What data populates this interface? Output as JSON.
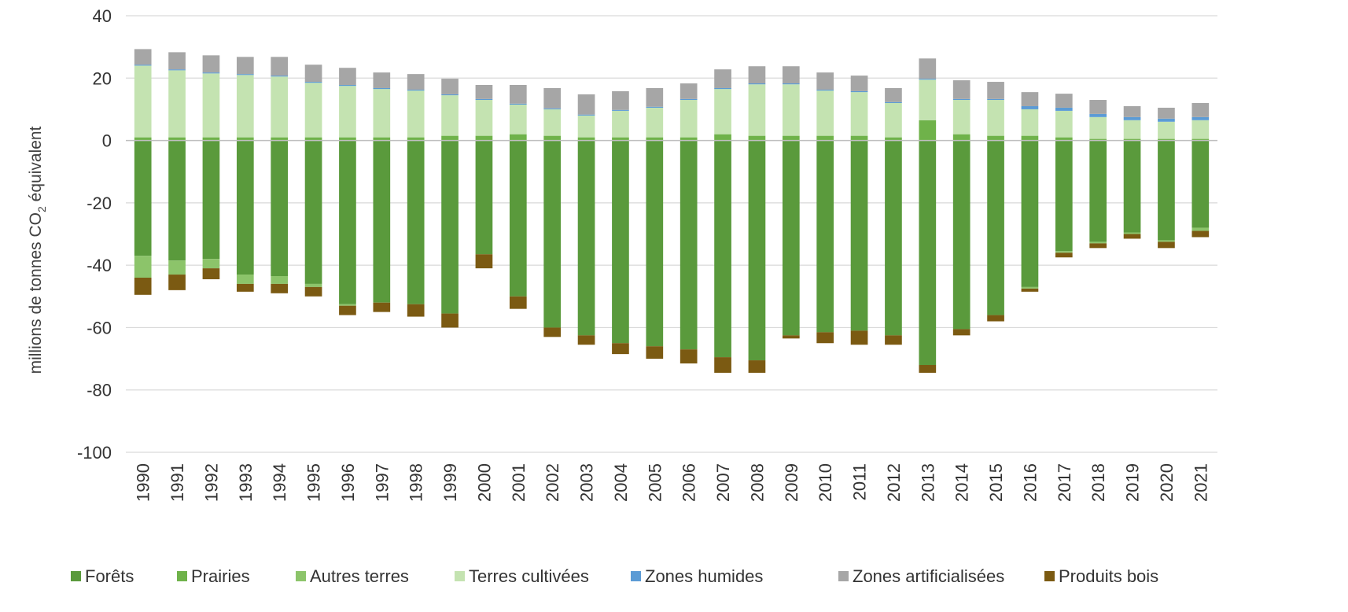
{
  "chart_data": {
    "type": "bar",
    "stacked": true,
    "title": "",
    "xlabel": "",
    "ylabel": {
      "prefix": "millions de tonnes CO",
      "subscript": "2",
      "suffix": " équivalent"
    },
    "ylim": [
      -100,
      40
    ],
    "yticks": [
      40,
      20,
      0,
      -20,
      -40,
      -60,
      -80,
      -100
    ],
    "grid": "horizontal",
    "legend_position": "bottom",
    "categories": [
      "1990",
      "1991",
      "1992",
      "1993",
      "1994",
      "1995",
      "1996",
      "1997",
      "1998",
      "1999",
      "2000",
      "2001",
      "2002",
      "2003",
      "2004",
      "2005",
      "2006",
      "2007",
      "2008",
      "2009",
      "2010",
      "2011",
      "2012",
      "2013",
      "2014",
      "2015",
      "2016",
      "2017",
      "2018",
      "2019",
      "2020",
      "2021"
    ],
    "series": [
      {
        "name": "Forêts",
        "color": "#5a9a3c",
        "values": [
          -37,
          -38.5,
          -38,
          -43,
          -43.5,
          -46,
          -52.5,
          -52,
          -52.5,
          -55.5,
          -36.5,
          -50,
          -60,
          -62.5,
          -65,
          -66,
          -67,
          -69.5,
          -70.5,
          -62.5,
          -61.5,
          -61,
          -62.5,
          -72,
          -60.5,
          -56,
          -47,
          -35.5,
          -32.5,
          -29.5,
          -32,
          -28
        ]
      },
      {
        "name": "Prairies",
        "color": "#6fb24a",
        "values": [
          1,
          1,
          1,
          1,
          1,
          1,
          1,
          1,
          1,
          1.5,
          1.5,
          2,
          1.5,
          1,
          1,
          1,
          1,
          2,
          1.5,
          1.5,
          1.5,
          1.5,
          1,
          6.5,
          2,
          1.5,
          1.5,
          1,
          0.5,
          0.5,
          0.5,
          0.5
        ]
      },
      {
        "name": "Autres terres",
        "color": "#8cc46a",
        "values": [
          -7,
          -4.5,
          -3,
          -3,
          -2.5,
          -1,
          -0.5,
          0,
          0,
          0,
          0,
          0,
          0,
          0,
          0,
          0,
          0,
          0,
          0,
          0,
          0,
          0,
          0,
          0,
          0,
          0,
          -0.5,
          -0.5,
          -0.5,
          -0.5,
          -0.5,
          -1
        ]
      },
      {
        "name": "Terres cultivées",
        "color": "#c4e3b1",
        "values": [
          23,
          21.5,
          20.5,
          20,
          19.5,
          17.5,
          16.5,
          15.5,
          15,
          13,
          11.5,
          9.5,
          8.5,
          7,
          8.5,
          9.5,
          12,
          14.5,
          16.5,
          16.5,
          14.5,
          14,
          11,
          13,
          11,
          11.5,
          8.5,
          8.5,
          7,
          6,
          5.5,
          6
        ]
      },
      {
        "name": "Zones humides",
        "color": "#5b9bd5",
        "values": [
          0.3,
          0.3,
          0.3,
          0.3,
          0.3,
          0.3,
          0.3,
          0.3,
          0.3,
          0.3,
          0.3,
          0.3,
          0.3,
          0.3,
          0.3,
          0.3,
          0.3,
          0.3,
          0.3,
          0.3,
          0.3,
          0.3,
          0.3,
          0.3,
          0.3,
          0.3,
          1,
          1,
          1,
          1,
          1,
          1
        ]
      },
      {
        "name": "Zones artificialisées",
        "color": "#a6a6a6",
        "values": [
          5,
          5.5,
          5.5,
          5.5,
          6,
          5.5,
          5.5,
          5,
          5,
          5,
          4.5,
          6,
          6.5,
          6.5,
          6,
          6,
          5,
          6,
          5.5,
          5.5,
          5.5,
          5,
          4.5,
          6.5,
          6,
          5.5,
          4.5,
          4.5,
          4.5,
          3.5,
          3.5,
          4.5
        ]
      },
      {
        "name": "Produits bois",
        "color": "#7b5a12",
        "values": [
          -5.5,
          -5,
          -3.5,
          -2.5,
          -3,
          -3,
          -3,
          -3,
          -4,
          -4.5,
          -4.5,
          -4,
          -3,
          -3,
          -3.5,
          -4,
          -4.5,
          -5,
          -4,
          -1,
          -3.5,
          -4.5,
          -3,
          -2.5,
          -2,
          -2,
          -1,
          -1.5,
          -1.5,
          -1.5,
          -2,
          -2
        ]
      }
    ]
  }
}
